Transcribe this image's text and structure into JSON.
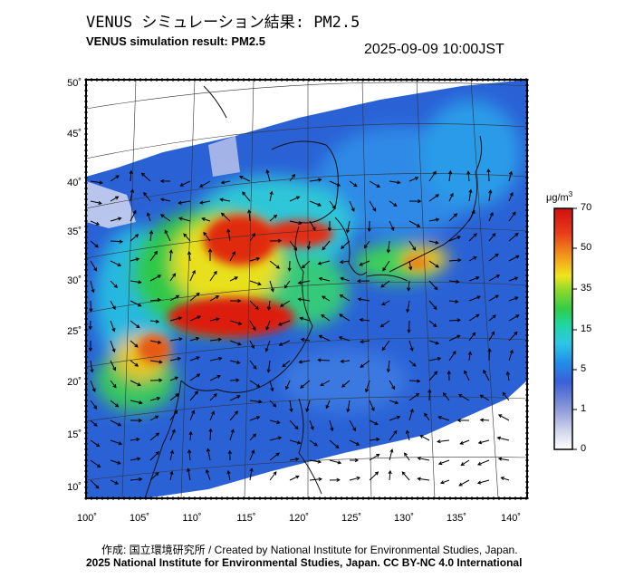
{
  "title": {
    "japanese": "VENUS シミュレーション結果: PM2.5",
    "english": "VENUS simulation result: PM2.5",
    "timestamp": "2025-09-09 10:00JST"
  },
  "map": {
    "latitude_labels": [
      "50˚",
      "45˚",
      "40˚",
      "35˚",
      "30˚",
      "25˚",
      "20˚",
      "15˚",
      "10˚"
    ],
    "longitude_labels": [
      "100˚",
      "105˚",
      "110˚",
      "115˚",
      "120˚",
      "125˚",
      "130˚",
      "135˚",
      "140˚"
    ],
    "lon_range": [
      100,
      140
    ],
    "lat_range": [
      10,
      50
    ],
    "colors": {
      "ocean": "#1f5fdc",
      "land_line": "#111111",
      "vector": "#000000"
    }
  },
  "colorbar": {
    "unit_label": "μg/m",
    "unit_superscript": "3",
    "tick_labels": [
      "70",
      "50",
      "35",
      "15",
      "5",
      "1",
      "0"
    ],
    "colors": [
      "#ffffff",
      "#cfd3ea",
      "#8b98d8",
      "#3b5fd8",
      "#1f8fe8",
      "#2fc6e6",
      "#1ed7a0",
      "#30cc4a",
      "#8ed92a",
      "#f0e61e",
      "#f39a1a",
      "#e83a1a",
      "#d10f0f"
    ]
  },
  "footer": {
    "credit": "作成: 国立環境研究所 / Created by National Institute for Environmental Studies, Japan.",
    "license": "2025 National Institute for Environmental Studies, Japan. CC BY-NC 4.0 International"
  }
}
